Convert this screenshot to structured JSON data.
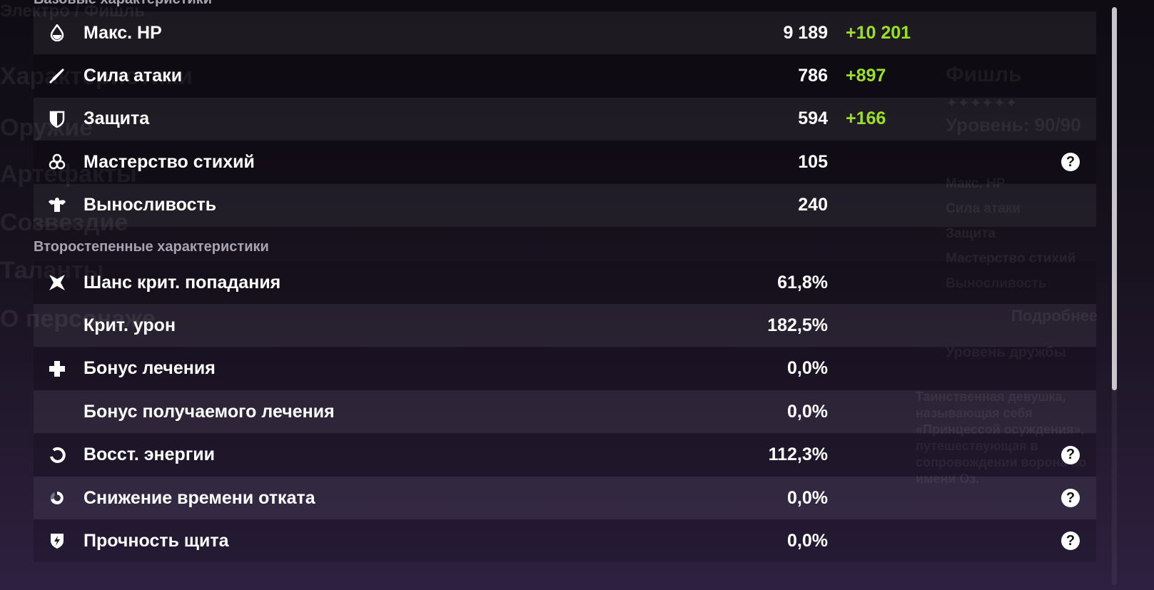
{
  "background": {
    "breadcrumb": "Электро / Фишль",
    "nav": [
      "Характеристики",
      "Оружие",
      "Артефакты",
      "Созвездие",
      "Таланты",
      "О персонаже"
    ],
    "character_name": "Фишль",
    "level": "Уровень: 90/90",
    "stats": [
      "Макс. HP",
      "Сила атаки",
      "Защита",
      "Мастерство стихий",
      "Выносливость"
    ],
    "details_button": "Подробнее",
    "friendship": "Уровень дружбы",
    "description": [
      "Таинственная девушка,",
      "называющая себя",
      "«Принцессой осуждения»,",
      "путешествующая в",
      "сопровождении ворона по",
      "имени Оз."
    ]
  },
  "colors": {
    "bonus": "#9be21c",
    "accent_bg": "#241a30"
  },
  "base_section": {
    "title": "Базовые характеристики",
    "rows": [
      {
        "icon": "drop-icon",
        "label": "Макс. HP",
        "value": "9 189",
        "bonus": "+10 201",
        "help": false
      },
      {
        "icon": "sword-icon",
        "label": "Сила атаки",
        "value": "786",
        "bonus": "+897",
        "help": false
      },
      {
        "icon": "shield-icon",
        "label": "Защита",
        "value": "594",
        "bonus": "+166",
        "help": false
      },
      {
        "icon": "elemental-mastery-icon",
        "label": "Мастерство стихий",
        "value": "105",
        "bonus": "",
        "help": true
      },
      {
        "icon": "stamina-icon",
        "label": "Выносливость",
        "value": "240",
        "bonus": "",
        "help": false
      }
    ]
  },
  "advanced_section": {
    "title": "Второстепенные характеристики",
    "rows": [
      {
        "icon": "crit-icon",
        "label": "Шанс крит. попадания",
        "value": "61,8%",
        "help": false
      },
      {
        "icon": "",
        "label": "Крит. урон",
        "value": "182,5%",
        "help": false
      },
      {
        "icon": "healing-icon",
        "label": "Бонус лечения",
        "value": "0,0%",
        "help": false
      },
      {
        "icon": "",
        "label": "Бонус получаемого лечения",
        "value": "0,0%",
        "help": false
      },
      {
        "icon": "energy-recharge-icon",
        "label": "Восст. энергии",
        "value": "112,3%",
        "help": true
      },
      {
        "icon": "cooldown-icon",
        "label": "Снижение времени отката",
        "value": "0,0%",
        "help": true
      },
      {
        "icon": "shield-strength-icon",
        "label": "Прочность щита",
        "value": "0,0%",
        "help": true
      }
    ]
  }
}
